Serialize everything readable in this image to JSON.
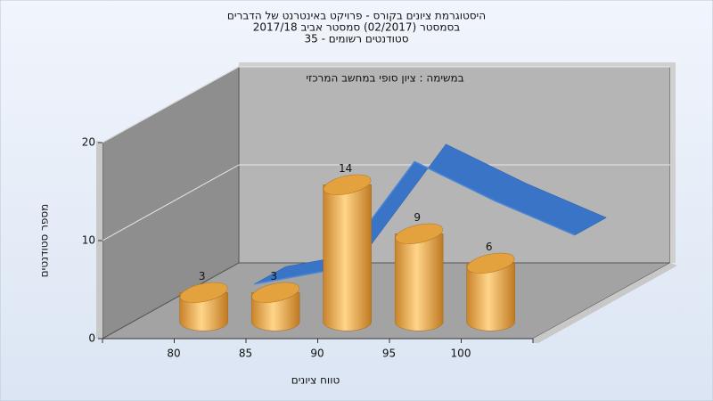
{
  "chart_data": {
    "type": "bar",
    "title": [
      "היסטוגרמת ציונים בקורס - פרויקט באינטרנט של הדברים",
      "בסמסטר (02/2017) סמסטר אביב 2017/18",
      "סטודנטים רשומים - 35"
    ],
    "annotation": "במשימה : ציון סופי במחשב המרכזי",
    "y_label": "מספר סטודנטים",
    "x_label": "טווח ציונים",
    "categories": [
      "80",
      "85",
      "90",
      "95",
      "100"
    ],
    "series": [
      {
        "type": "bar",
        "color": "#e8a33d",
        "values": [
          3,
          3,
          14,
          9,
          6
        ]
      },
      {
        "type": "line",
        "color": "#3a74c6",
        "values": [
          0,
          1.5,
          12.5,
          8.5,
          5
        ]
      }
    ],
    "ylim": [
      0,
      20
    ],
    "yticks": [
      0,
      10,
      20
    ],
    "grid": true
  }
}
